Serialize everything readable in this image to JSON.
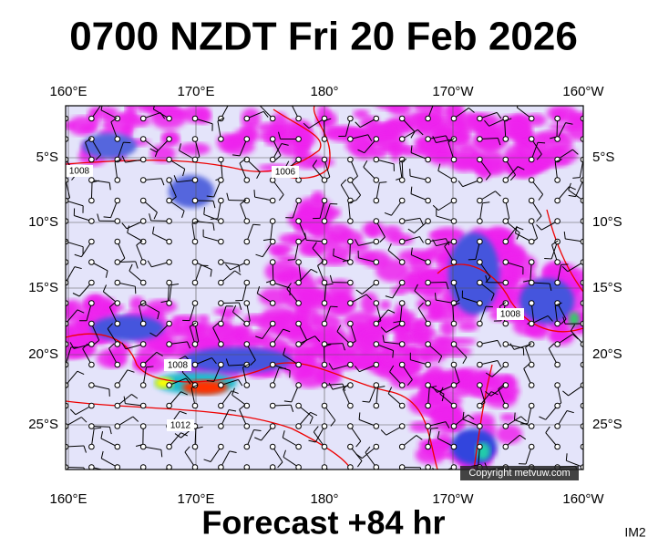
{
  "title": "0700 NZDT Fri 20 Feb 2026",
  "footer": "Forecast +84 hr",
  "corner_label": "IM2",
  "copyright": "Copyright metvuw.com",
  "longitude_labels": [
    "160°E",
    "170°E",
    "180°",
    "170°W",
    "160°W"
  ],
  "latitude_labels": [
    "5°S",
    "10°S",
    "15°S",
    "20°S",
    "25°S"
  ],
  "isobar_labels": [
    "1008",
    "1006",
    "1008",
    "1008",
    "1012"
  ]
}
